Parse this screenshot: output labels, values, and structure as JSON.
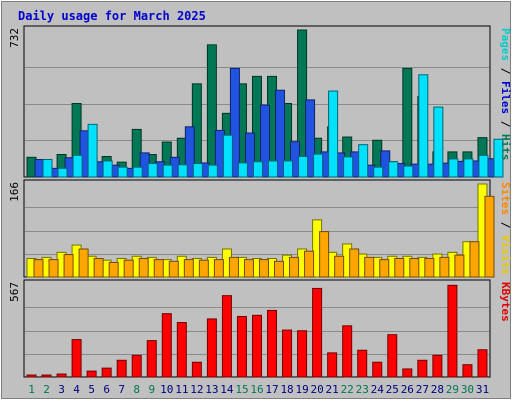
{
  "chart_data": [
    {
      "type": "bar",
      "title": "Daily usage for March 2025",
      "categories": [
        "1",
        "2",
        "3",
        "4",
        "5",
        "6",
        "7",
        "8",
        "9",
        "10",
        "11",
        "12",
        "13",
        "14",
        "15",
        "16",
        "17",
        "18",
        "19",
        "20",
        "21",
        "22",
        "23",
        "24",
        "25",
        "26",
        "27",
        "28",
        "29",
        "30",
        "31"
      ],
      "ymax_label": "732",
      "ylim": [
        0,
        732
      ],
      "right_label": {
        "parts": [
          "Pages",
          " / ",
          "Files",
          " / ",
          "Hits"
        ],
        "colors": [
          "#00cccc",
          "#000000",
          "#0000cc",
          "#000000",
          "#007755"
        ]
      },
      "series": [
        {
          "name": "Hits",
          "color": "#007755",
          "values": [
            98,
            55,
            112,
            366,
            161,
            102,
            74,
            237,
            112,
            174,
            193,
            464,
            658,
            317,
            464,
            501,
            501,
            366,
            732,
            193,
            250,
            199,
            88,
            183,
            76,
            541,
            401,
            125,
            125,
            125,
            196
          ]
        },
        {
          "name": "Files",
          "color": "#1f53e0",
          "values": [
            87,
            43,
            96,
            230,
            76,
            59,
            43,
            120,
            76,
            98,
            250,
            70,
            232,
            541,
            219,
            358,
            432,
            176,
            384,
            125,
            120,
            125,
            59,
            130,
            67,
            64,
            64,
            69,
            78,
            80,
            91
          ]
        },
        {
          "name": "Pages",
          "color": "#00e0ff",
          "values": [
            87,
            43,
            108,
            262,
            80,
            49,
            49,
            67,
            59,
            61,
            67,
            59,
            208,
            70,
            76,
            80,
            80,
            102,
            114,
            428,
            100,
            161,
            49,
            76,
            54,
            509,
            348,
            90,
            90,
            108,
            188
          ]
        }
      ]
    },
    {
      "type": "bar",
      "ymax_label": "166",
      "ylim": [
        0,
        166
      ],
      "right_label": {
        "parts": [
          "Sites",
          " / ",
          "Visits"
        ],
        "colors": [
          "#ff8800",
          "#000000",
          "#e8c800"
        ]
      },
      "series": [
        {
          "name": "Visits",
          "color": "#ffff00",
          "values": [
            33,
            35,
            44,
            57,
            37,
            30,
            33,
            37,
            35,
            31,
            37,
            33,
            35,
            50,
            35,
            33,
            33,
            39,
            50,
            102,
            44,
            59,
            41,
            35,
            37,
            37,
            35,
            41,
            44,
            63,
            166
          ]
        },
        {
          "name": "Sites",
          "color": "#ffa500",
          "values": [
            31,
            31,
            40,
            50,
            33,
            26,
            30,
            33,
            31,
            28,
            31,
            30,
            31,
            35,
            31,
            31,
            28,
            35,
            46,
            81,
            37,
            50,
            35,
            31,
            33,
            33,
            33,
            35,
            39,
            63,
            144
          ]
        }
      ]
    },
    {
      "type": "bar",
      "ymax_label": "567",
      "ylim": [
        0,
        567
      ],
      "right_label": {
        "parts": [
          "KBytes"
        ],
        "colors": [
          "#dd0000"
        ]
      },
      "series": [
        {
          "name": "KBytes",
          "color": "#ff0000",
          "values": [
            12,
            12,
            18,
            228,
            36,
            54,
            102,
            132,
            222,
            386,
            332,
            90,
            354,
            496,
            369,
            376,
            406,
            286,
            282,
            540,
            147,
            312,
            163,
            90,
            258,
            49,
            102,
            132,
            559,
            75,
            166
          ]
        }
      ]
    }
  ],
  "x_label_colors": {
    "weekday": "#000080",
    "weekend": "#007755"
  },
  "weekend_days": [
    1,
    2,
    8,
    9,
    15,
    16,
    22,
    23,
    29,
    30
  ],
  "colors": {
    "background": "#c0c0c0",
    "plot_area": "#c0c0c0",
    "title": "#0000cc",
    "border_light": "#ffffff",
    "border_dark": "#808080"
  }
}
